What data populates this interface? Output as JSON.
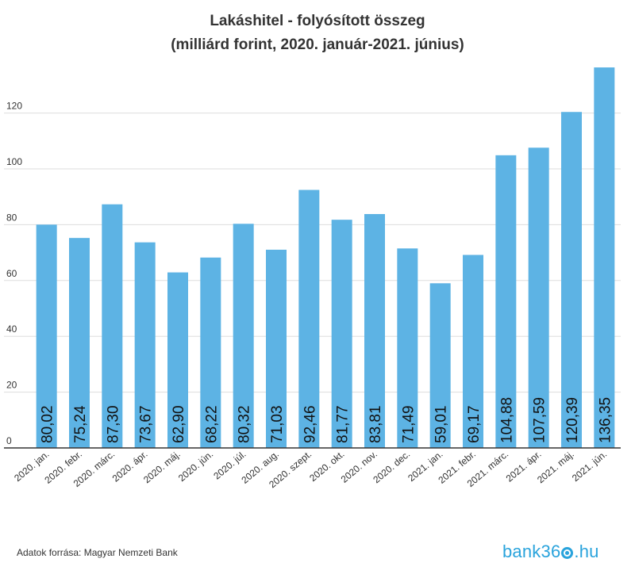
{
  "title_line1": "Lakáshitel - folyósított összeg",
  "title_line2": "(milliárd forint, 2020. január-2021. június)",
  "source": "Adatok forrása: Magyar Nemzeti Bank",
  "logo": {
    "before": "bank36",
    "after": ".hu"
  },
  "colors": {
    "bar": "#5db3e4",
    "grid": "#dddddd",
    "axis": "#333333",
    "text": "#333333"
  },
  "chart_data": {
    "type": "bar",
    "title": "Lakáshitel - folyósított összeg (milliárd forint, 2020. január-2021. június)",
    "categories": [
      "2020. jan.",
      "2020. febr.",
      "2020. márc.",
      "2020. ápr.",
      "2020. máj.",
      "2020. jún.",
      "2020. júl.",
      "2020. aug.",
      "2020. szept.",
      "2020. okt.",
      "2020. nov.",
      "2020. dec.",
      "2021. jan.",
      "2021. febr.",
      "2021. márc.",
      "2021. ápr.",
      "2021. máj.",
      "2021. jún."
    ],
    "values": [
      80.02,
      75.24,
      87.3,
      73.67,
      62.9,
      68.22,
      80.32,
      71.03,
      92.46,
      81.77,
      83.81,
      71.49,
      59.01,
      69.17,
      104.88,
      107.59,
      120.39,
      136.35
    ],
    "value_labels": [
      "80,02",
      "75,24",
      "87,30",
      "73,67",
      "62,90",
      "68,22",
      "80,32",
      "71,03",
      "92,46",
      "81,77",
      "83,81",
      "71,49",
      "59,01",
      "69,17",
      "104,88",
      "107,59",
      "120,39",
      "136,35"
    ],
    "yticks": [
      0,
      20,
      40,
      60,
      80,
      100,
      120
    ],
    "ylim": [
      0,
      130
    ],
    "grid": true,
    "xlabel": "",
    "ylabel": ""
  }
}
